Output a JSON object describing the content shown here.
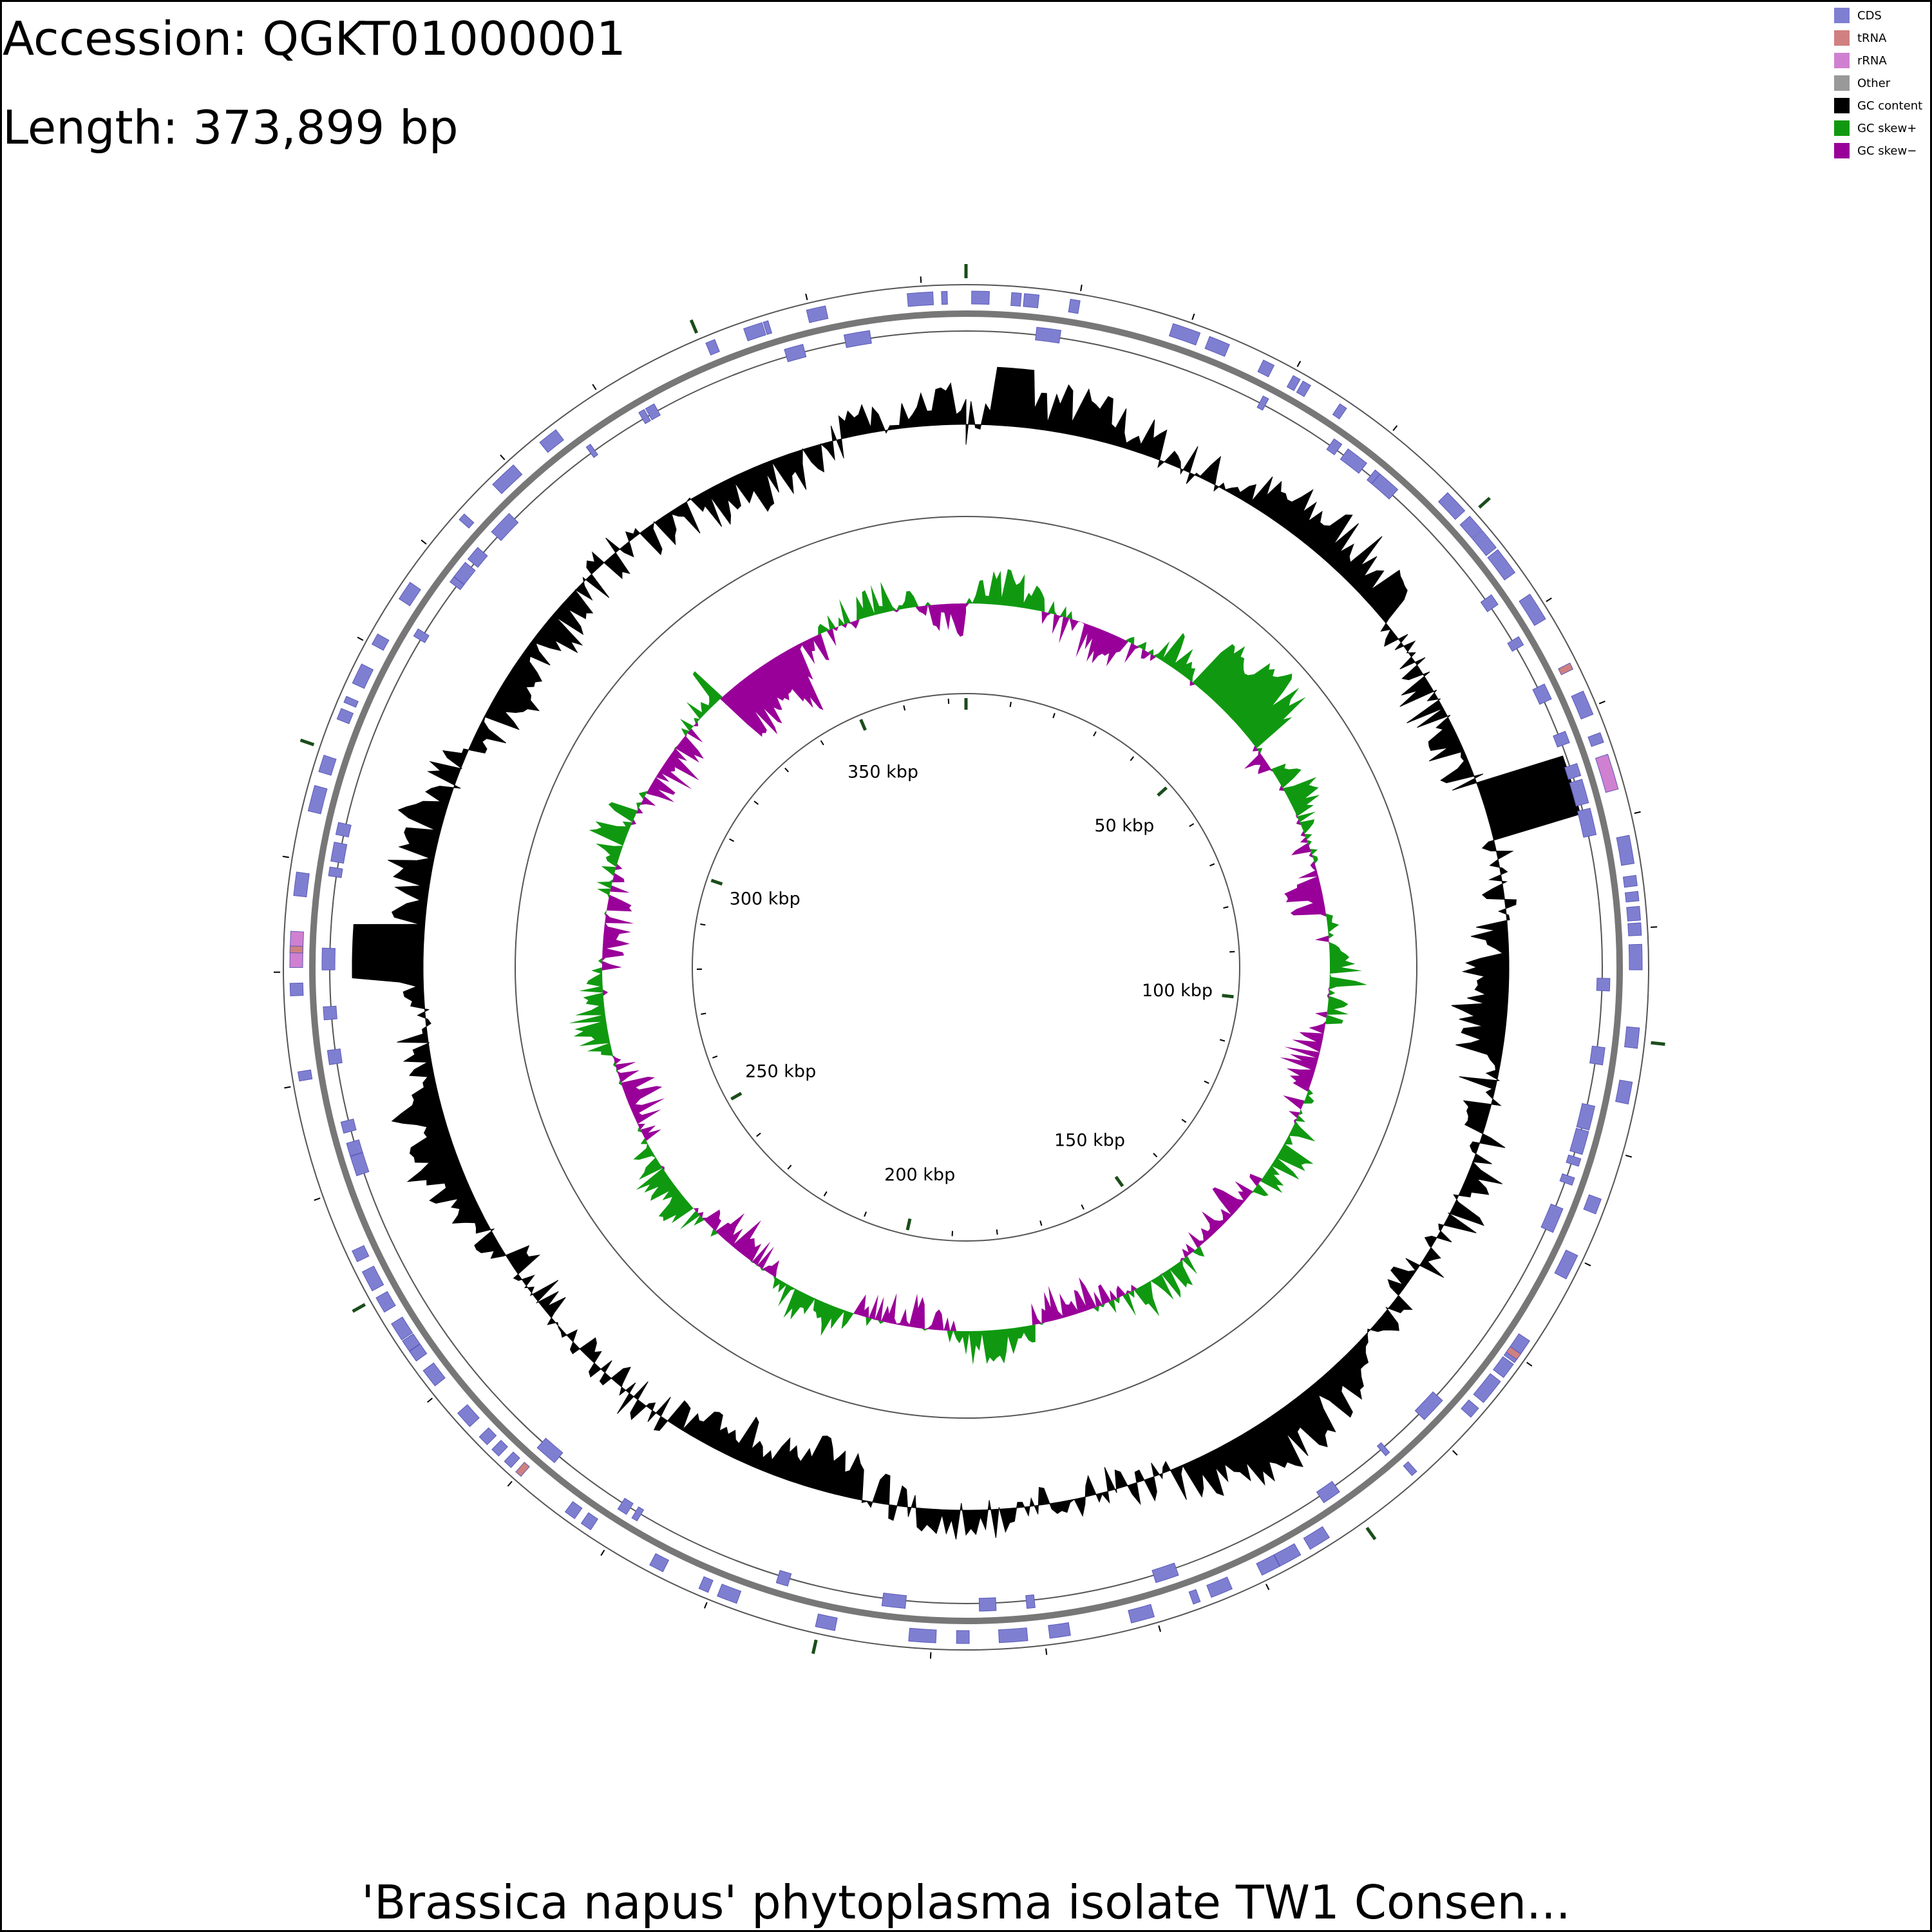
{
  "header": {
    "accession": "Accession: QGKT01000001",
    "length": "Length: 373,899 bp"
  },
  "footer": {
    "title": "'Brassica napus' phytoplasma isolate TW1 Consen..."
  },
  "legend": [
    {
      "label": "CDS",
      "color": "#7f7fd2"
    },
    {
      "label": "tRNA",
      "color": "#d08080"
    },
    {
      "label": "rRNA",
      "color": "#d080d0"
    },
    {
      "label": "Other",
      "color": "#999999"
    },
    {
      "label": "GC content",
      "color": "#000000"
    },
    {
      "label": "GC skew+",
      "color": "#109910"
    },
    {
      "label": "GC skew−",
      "color": "#990099"
    }
  ],
  "chart_data": {
    "type": "circular-genome-map",
    "genome_length_bp": 373899,
    "tick_labels": [
      "50 kbp",
      "100 kbp",
      "150 kbp",
      "200 kbp",
      "250 kbp",
      "300 kbp",
      "350 kbp"
    ],
    "tick_positions_kbp": [
      0,
      50,
      100,
      150,
      200,
      250,
      300,
      350
    ],
    "rrna_positions_kbp": [
      76,
      282
    ],
    "trna_positions_kbp": [
      66,
      130,
      230,
      282
    ]
  }
}
